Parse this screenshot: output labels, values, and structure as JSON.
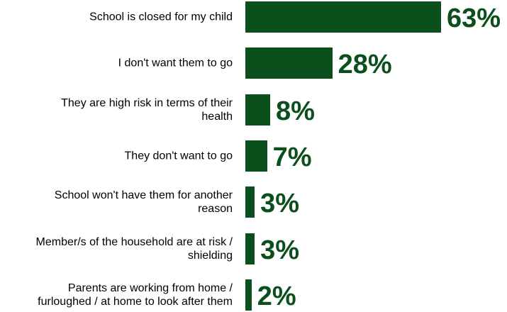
{
  "chart_data": {
    "type": "bar",
    "orientation": "horizontal",
    "categories": [
      "School is closed for my child",
      "I don't want them to go",
      "They are high risk in terms of their health",
      "They don't want to go",
      "School won't have them for another reason",
      "Member/s of the household are at risk / shielding",
      "Parents are working from home / furloughed / at home to look after them"
    ],
    "category_lines": [
      [
        "School is closed for my child"
      ],
      [
        "I don't want them to go"
      ],
      [
        "They are high risk in terms of their",
        "health"
      ],
      [
        "They don't want to go"
      ],
      [
        "School won't have them for another",
        "reason"
      ],
      [
        "Member/s of the household are at risk /",
        "shielding"
      ],
      [
        "Parents are working from home /",
        "furloughed / at home to look after them"
      ]
    ],
    "values": [
      63,
      28,
      8,
      7,
      3,
      3,
      2
    ],
    "value_labels": [
      "63%",
      "28%",
      "8%",
      "7%",
      "3%",
      "3%",
      "2%"
    ],
    "unit": "%",
    "xlim": [
      0,
      63
    ],
    "grid": false,
    "legend": "none",
    "bar_color": "#0b4f1c",
    "label_color": "#0b4f1c"
  }
}
